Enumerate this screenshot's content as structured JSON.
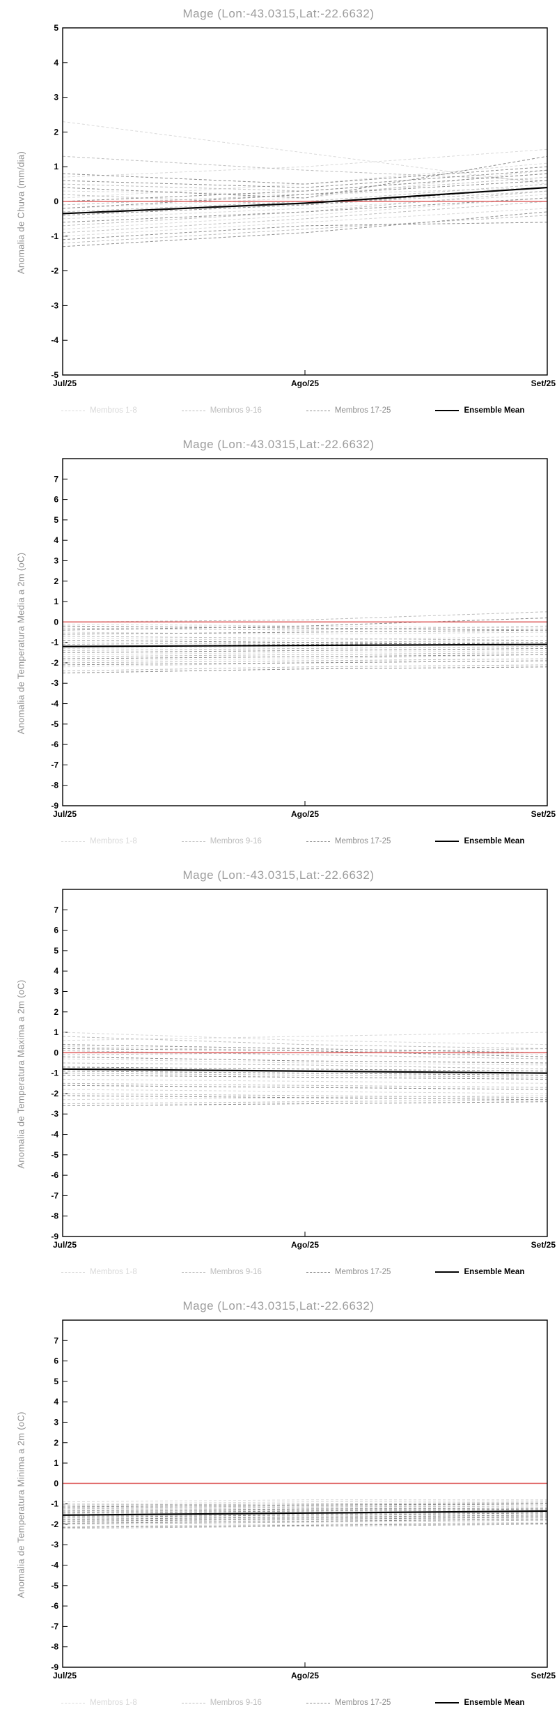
{
  "chart_data": [
    {
      "type": "line",
      "title": "Mage (Lon:-43.0315,Lat:-22.6632)",
      "ylabel": "Anomalia de Chuva (mm/dia)",
      "xlabel": "",
      "x": [
        "Jul/25",
        "Ago/25",
        "Set/25"
      ],
      "ylim": [
        -5,
        5
      ],
      "ytick_step": 1,
      "ytick_label_max": 5,
      "grid": false,
      "legend_position": "bottom",
      "reference_line": {
        "value": 0,
        "color": "#e06666"
      },
      "ensemble_mean": {
        "label": "Ensemble Mean",
        "color": "#000000",
        "values": [
          -0.35,
          -0.05,
          0.4
        ]
      },
      "groups": [
        {
          "label": "Membros 1-8",
          "color": "#d9d9d9",
          "members": [
            [
              2.3,
              1.4,
              0.5
            ],
            [
              0.7,
              1.0,
              1.5
            ],
            [
              -0.2,
              0.1,
              0.9
            ],
            [
              -0.5,
              -0.2,
              0.2
            ],
            [
              -0.8,
              -0.4,
              0.1
            ],
            [
              0.3,
              0.2,
              0.4
            ],
            [
              -1.0,
              -0.6,
              -0.2
            ],
            [
              0.1,
              0.5,
              1.1
            ]
          ]
        },
        {
          "label": "Membros 9-16",
          "color": "#bdbdbd",
          "members": [
            [
              1.3,
              0.9,
              0.6
            ],
            [
              -0.3,
              0.0,
              0.5
            ],
            [
              -0.7,
              -0.3,
              0.3
            ],
            [
              0.5,
              0.3,
              0.8
            ],
            [
              -1.2,
              -0.8,
              -0.4
            ],
            [
              -0.1,
              0.2,
              0.7
            ],
            [
              0.2,
              -0.1,
              0.3
            ],
            [
              -0.9,
              -0.5,
              0.0
            ]
          ]
        },
        {
          "label": "Membros 17-25",
          "color": "#8c8c8c",
          "members": [
            [
              0.6,
              0.4,
              0.9
            ],
            [
              -0.4,
              -0.1,
              0.4
            ],
            [
              -1.1,
              -0.7,
              -0.6
            ],
            [
              0.0,
              0.3,
              0.8
            ],
            [
              -0.6,
              -0.3,
              0.1
            ],
            [
              0.4,
              0.1,
              1.3
            ],
            [
              -1.3,
              -0.9,
              -0.3
            ],
            [
              -0.2,
              0.2,
              0.6
            ],
            [
              0.8,
              0.5,
              1.0
            ]
          ]
        }
      ]
    },
    {
      "type": "line",
      "title": "Mage (Lon:-43.0315,Lat:-22.6632)",
      "ylabel": "Anomalia de Temperatura Media a 2m (oC)",
      "xlabel": "",
      "x": [
        "Jul/25",
        "Ago/25",
        "Set/25"
      ],
      "ylim": [
        -9,
        8
      ],
      "ytick_step": 1,
      "ytick_label_max": 7,
      "grid": false,
      "legend_position": "bottom",
      "reference_line": {
        "value": 0,
        "color": "#e06666"
      },
      "ensemble_mean": {
        "label": "Ensemble Mean",
        "color": "#000000",
        "values": [
          -1.2,
          -1.15,
          -1.1
        ]
      },
      "groups": [
        {
          "label": "Membros 1-8",
          "color": "#d9d9d9",
          "members": [
            [
              -0.1,
              -0.2,
              -0.3
            ],
            [
              -0.5,
              -0.6,
              -0.5
            ],
            [
              -1.0,
              -1.1,
              -1.0
            ],
            [
              -1.3,
              -1.2,
              -1.1
            ],
            [
              -1.6,
              -1.5,
              -1.4
            ],
            [
              -1.9,
              -1.8,
              -1.6
            ],
            [
              -2.2,
              -2.0,
              -1.9
            ],
            [
              -0.8,
              -0.9,
              -0.7
            ]
          ]
        },
        {
          "label": "Membros 9-16",
          "color": "#bdbdbd",
          "members": [
            [
              -0.3,
              -0.4,
              -0.2
            ],
            [
              -0.7,
              -0.8,
              -0.9
            ],
            [
              -1.1,
              -1.0,
              -0.9
            ],
            [
              -1.4,
              -1.3,
              -1.2
            ],
            [
              -1.7,
              -1.6,
              -1.5
            ],
            [
              -2.0,
              -1.9,
              -1.8
            ],
            [
              -2.4,
              -2.2,
              -2.1
            ],
            [
              0.0,
              0.1,
              0.5
            ]
          ]
        },
        {
          "label": "Membros 17-25",
          "color": "#8c8c8c",
          "members": [
            [
              -0.2,
              -0.3,
              -0.4
            ],
            [
              -0.6,
              -0.5,
              -0.4
            ],
            [
              -0.9,
              -1.0,
              -1.1
            ],
            [
              -1.2,
              -1.1,
              -1.0
            ],
            [
              -1.5,
              -1.4,
              -1.3
            ],
            [
              -1.8,
              -1.7,
              -1.6
            ],
            [
              -2.1,
              -2.0,
              -1.9
            ],
            [
              -2.5,
              -2.3,
              -2.2
            ],
            [
              -0.4,
              -0.2,
              0.2
            ]
          ]
        }
      ]
    },
    {
      "type": "line",
      "title": "Mage (Lon:-43.0315,Lat:-22.6632)",
      "ylabel": "Anomalia de Temperatura Maxima a 2m (oC)",
      "xlabel": "",
      "x": [
        "Jul/25",
        "Ago/25",
        "Set/25"
      ],
      "ylim": [
        -9,
        8
      ],
      "ytick_step": 1,
      "ytick_label_max": 7,
      "grid": false,
      "legend_position": "bottom",
      "reference_line": {
        "value": 0,
        "color": "#e06666"
      },
      "ensemble_mean": {
        "label": "Ensemble Mean",
        "color": "#000000",
        "values": [
          -0.8,
          -0.9,
          -1.0
        ]
      },
      "groups": [
        {
          "label": "Membros 1-8",
          "color": "#d9d9d9",
          "members": [
            [
              1.0,
              0.6,
              0.4
            ],
            [
              0.3,
              0.1,
              -0.1
            ],
            [
              -0.3,
              -0.5,
              -0.6
            ],
            [
              -0.8,
              -0.9,
              -1.0
            ],
            [
              -1.3,
              -1.4,
              -1.5
            ],
            [
              -1.8,
              -1.9,
              -2.0
            ],
            [
              -2.3,
              -2.2,
              -2.1
            ],
            [
              0.6,
              0.8,
              1.0
            ]
          ]
        },
        {
          "label": "Membros 9-16",
          "color": "#bdbdbd",
          "members": [
            [
              0.8,
              0.4,
              0.2
            ],
            [
              0.1,
              -0.1,
              -0.3
            ],
            [
              -0.5,
              -0.6,
              -0.8
            ],
            [
              -1.0,
              -1.1,
              -1.2
            ],
            [
              -1.5,
              -1.6,
              -1.7
            ],
            [
              -2.0,
              -2.1,
              -2.2
            ],
            [
              -2.5,
              -2.4,
              -2.3
            ],
            [
              -0.1,
              0.0,
              0.2
            ]
          ]
        },
        {
          "label": "Membros 17-25",
          "color": "#8c8c8c",
          "members": [
            [
              0.4,
              0.2,
              0.0
            ],
            [
              -0.2,
              -0.4,
              -0.5
            ],
            [
              -0.7,
              -0.8,
              -0.9
            ],
            [
              -1.1,
              -1.2,
              -1.3
            ],
            [
              -1.6,
              -1.7,
              -1.8
            ],
            [
              -2.1,
              -2.2,
              -2.3
            ],
            [
              -2.6,
              -2.5,
              -2.4
            ],
            [
              0.2,
              0.1,
              -0.2
            ],
            [
              -0.9,
              -1.0,
              -1.1
            ]
          ]
        }
      ]
    },
    {
      "type": "line",
      "title": "Mage (Lon:-43.0315,Lat:-22.6632)",
      "ylabel": "Anomalia de Temperatura Minima a 2m (oC)",
      "xlabel": "",
      "x": [
        "Jul/25",
        "Ago/25",
        "Set/25"
      ],
      "ylim": [
        -9,
        8
      ],
      "ytick_step": 1,
      "ytick_label_max": 7,
      "grid": false,
      "legend_position": "bottom",
      "reference_line": {
        "value": 0,
        "color": "#e06666"
      },
      "ensemble_mean": {
        "label": "Ensemble Mean",
        "color": "#000000",
        "values": [
          -1.55,
          -1.45,
          -1.35
        ]
      },
      "groups": [
        {
          "label": "Membros 1-8",
          "color": "#d9d9d9",
          "members": [
            [
              -0.9,
              -0.8,
              -0.8
            ],
            [
              -1.1,
              -1.0,
              -0.9
            ],
            [
              -1.3,
              -1.2,
              -1.1
            ],
            [
              -1.5,
              -1.4,
              -1.3
            ],
            [
              -1.7,
              -1.6,
              -1.5
            ],
            [
              -1.9,
              -1.8,
              -1.7
            ],
            [
              -2.1,
              -2.0,
              -1.9
            ],
            [
              -1.0,
              -0.9,
              -0.85
            ]
          ]
        },
        {
          "label": "Membros 9-16",
          "color": "#bdbdbd",
          "members": [
            [
              -1.2,
              -1.1,
              -1.0
            ],
            [
              -1.4,
              -1.3,
              -1.2
            ],
            [
              -1.6,
              -1.5,
              -1.4
            ],
            [
              -1.8,
              -1.7,
              -1.6
            ],
            [
              -2.0,
              -1.9,
              -1.8
            ],
            [
              -2.2,
              -2.1,
              -2.0
            ],
            [
              -1.05,
              -1.0,
              -0.95
            ],
            [
              -1.25,
              -1.15,
              -1.1
            ]
          ]
        },
        {
          "label": "Membros 17-25",
          "color": "#8c8c8c",
          "members": [
            [
              -1.35,
              -1.25,
              -1.2
            ],
            [
              -1.55,
              -1.45,
              -1.35
            ],
            [
              -1.75,
              -1.65,
              -1.55
            ],
            [
              -1.95,
              -1.85,
              -1.75
            ],
            [
              -2.15,
              -2.05,
              -1.95
            ],
            [
              -1.15,
              -1.05,
              -1.0
            ],
            [
              -1.45,
              -1.35,
              -1.25
            ],
            [
              -1.65,
              -1.55,
              -1.45
            ],
            [
              -1.85,
              -1.75,
              -1.65
            ]
          ]
        }
      ]
    }
  ]
}
